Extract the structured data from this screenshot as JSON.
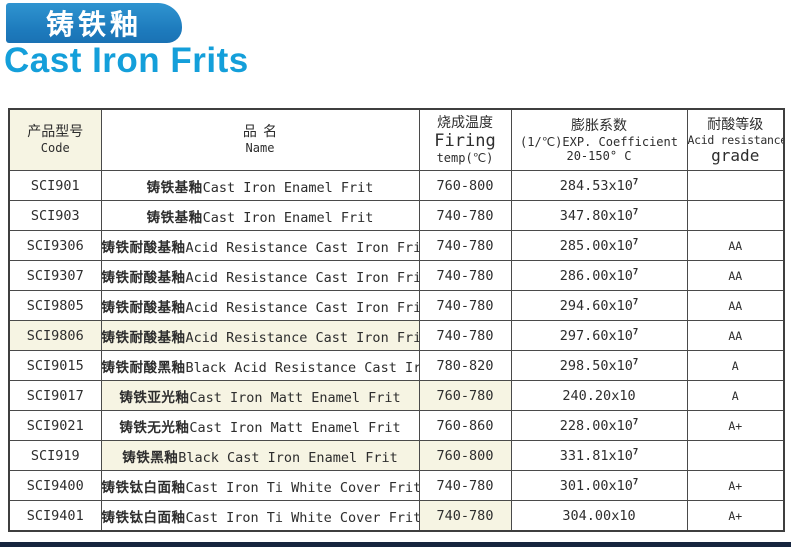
{
  "page": {
    "banner_title": "铸铁釉",
    "page_title": "Cast Iron Frits",
    "colors": {
      "banner_blue": "#1d7abc",
      "title_blue": "#149fda",
      "cream_cell": "#f6f4e3",
      "footer_bar": "#16253e"
    }
  },
  "table": {
    "headers": {
      "code_cn": "产品型号",
      "code_en": "Code",
      "name_cn": "品名",
      "name_en": "Name",
      "firing_cn": "烧成温度",
      "firing_en": "Firing",
      "firing_unit": "temp(℃)",
      "exp_cn": "膨胀系数",
      "exp_en": "(1/℃)EXP. Coefficient",
      "exp_range": "20-150° C",
      "grade_cn": "耐酸等级",
      "grade_en": "Acid resistance",
      "grade_word": "grade"
    },
    "rows": [
      {
        "code": "SCI901",
        "name_cn": "铸铁基釉",
        "name_en": "Cast Iron Enamel Frit",
        "firing": "760-800",
        "exp_base": "284.53x10",
        "exp_sup": "7",
        "grade": ""
      },
      {
        "code": "SCI903",
        "name_cn": "铸铁基釉",
        "name_en": "Cast Iron Enamel Frit",
        "firing": "740-780",
        "exp_base": "347.80x10",
        "exp_sup": "7",
        "grade": ""
      },
      {
        "code": "SCI9306",
        "name_cn": "铸铁耐酸基釉",
        "name_en": "Acid Resistance Cast Iron Frit",
        "firing": "740-780",
        "exp_base": "285.00x10",
        "exp_sup": "7",
        "grade": "AA"
      },
      {
        "code": "SCI9307",
        "name_cn": "铸铁耐酸基釉",
        "name_en": "Acid Resistance Cast Iron Frit",
        "firing": "740-780",
        "exp_base": "286.00x10",
        "exp_sup": "7",
        "grade": "AA"
      },
      {
        "code": "SCI9805",
        "name_cn": "铸铁耐酸基釉",
        "name_en": "Acid Resistance Cast Iron Frit",
        "firing": "740-780",
        "exp_base": "294.60x10",
        "exp_sup": "7",
        "grade": "AA"
      },
      {
        "code": "SCI9806",
        "name_cn": "铸铁耐酸基釉",
        "name_en": "Acid Resistance Cast Iron Frit",
        "firing": "740-780",
        "exp_base": "297.60x10",
        "exp_sup": "7",
        "grade": "AA"
      },
      {
        "code": "SCI9015",
        "name_cn": "铸铁耐酸黑釉",
        "name_en": "Black Acid Resistance Cast Iron Frit",
        "firing": "780-820",
        "exp_base": "298.50x10",
        "exp_sup": "7",
        "grade": "A"
      },
      {
        "code": "SCI9017",
        "name_cn": "铸铁亚光釉",
        "name_en": "Cast Iron Matt Enamel Frit",
        "firing": "760-780",
        "exp_base": "240.20x10",
        "exp_sup": "",
        "grade": "A"
      },
      {
        "code": "SCI9021",
        "name_cn": "铸铁无光釉",
        "name_en": "Cast Iron Matt Enamel Frit",
        "firing": "760-860",
        "exp_base": "228.00x10",
        "exp_sup": "7",
        "grade": "A+"
      },
      {
        "code": "SCI919",
        "name_cn": "铸铁黑釉",
        "name_en": "Black Cast Iron Enamel Frit",
        "firing": "760-800",
        "exp_base": "331.81x10",
        "exp_sup": "7",
        "grade": ""
      },
      {
        "code": "SCI9400",
        "name_cn": "铸铁钛白面釉",
        "name_en": "Cast Iron Ti White Cover Frit",
        "firing": "740-780",
        "exp_base": "301.00x10",
        "exp_sup": "7",
        "grade": "A+"
      },
      {
        "code": "SCI9401",
        "name_cn": "铸铁钛白面釉",
        "name_en": "Cast Iron Ti White Cover Frit",
        "firing": "740-780",
        "exp_base": "304.00x10",
        "exp_sup": "",
        "grade": "A+"
      }
    ]
  }
}
